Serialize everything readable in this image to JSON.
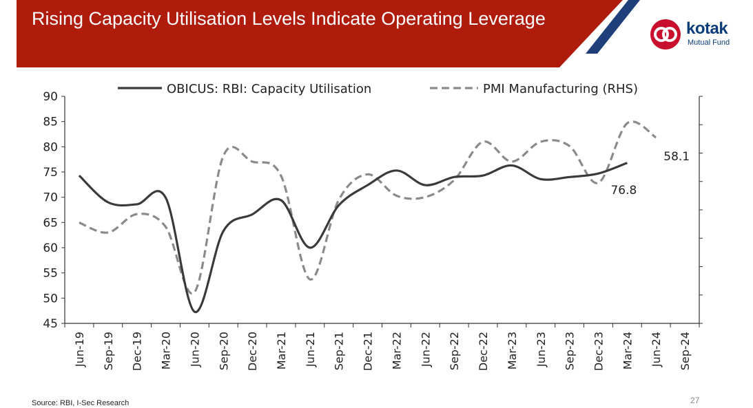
{
  "header": {
    "title": "Rising Capacity Utilisation Levels Indicate Operating Leverage",
    "brand_color": "#b01c0c",
    "accent_color": "#1e3f7a"
  },
  "logo": {
    "name": "kotak",
    "sub": "Mutual Fund",
    "icon": "kotak-logo-icon"
  },
  "footer": {
    "source": "Source: RBI, I-Sec Research",
    "page": "27"
  },
  "chart_data": {
    "type": "line",
    "categories": [
      "Jun-19",
      "Sep-19",
      "Dec-19",
      "Mar-20",
      "Jun-20",
      "Sep-20",
      "Dec-20",
      "Mar-21",
      "Jun-21",
      "Sep-21",
      "Dec-21",
      "Mar-22",
      "Jun-22",
      "Sep-22",
      "Dec-22",
      "Mar-23",
      "Jun-23",
      "Sep-23",
      "Dec-23",
      "Mar-24",
      "Jun-24",
      "Sep-24"
    ],
    "ylim_left": [
      45,
      90
    ],
    "ylim_right": [
      45,
      61
    ],
    "yticks_left": [
      45,
      50,
      55,
      60,
      65,
      70,
      75,
      80,
      85,
      90
    ],
    "yticks_right": [
      45,
      47,
      49,
      51,
      53,
      55,
      57,
      59,
      61
    ],
    "legend_position": "top",
    "series": [
      {
        "name": "OBICUS: RBI: Capacity Utilisation",
        "axis": "left",
        "style": "solid",
        "values": [
          74.3,
          69.0,
          68.6,
          69.9,
          47.3,
          63.3,
          66.6,
          69.4,
          60.0,
          68.4,
          72.4,
          75.3,
          72.4,
          74.0,
          74.3,
          76.3,
          73.6,
          74.0,
          74.7,
          76.8,
          null,
          null
        ]
      },
      {
        "name": "PMI Manufacturing (RHS)",
        "axis": "right",
        "style": "dashed",
        "values": [
          52.1,
          51.4,
          52.7,
          51.8,
          47.2,
          56.8,
          56.4,
          55.4,
          48.1,
          53.7,
          55.5,
          54.0,
          53.9,
          55.1,
          57.8,
          56.4,
          57.8,
          57.5,
          54.9,
          59.1,
          58.1,
          null
        ]
      }
    ],
    "annotations": [
      {
        "text": "76.8",
        "series": 0,
        "category": "Mar-24"
      },
      {
        "text": "58.1",
        "series": 1,
        "category": "Jun-24"
      }
    ]
  }
}
